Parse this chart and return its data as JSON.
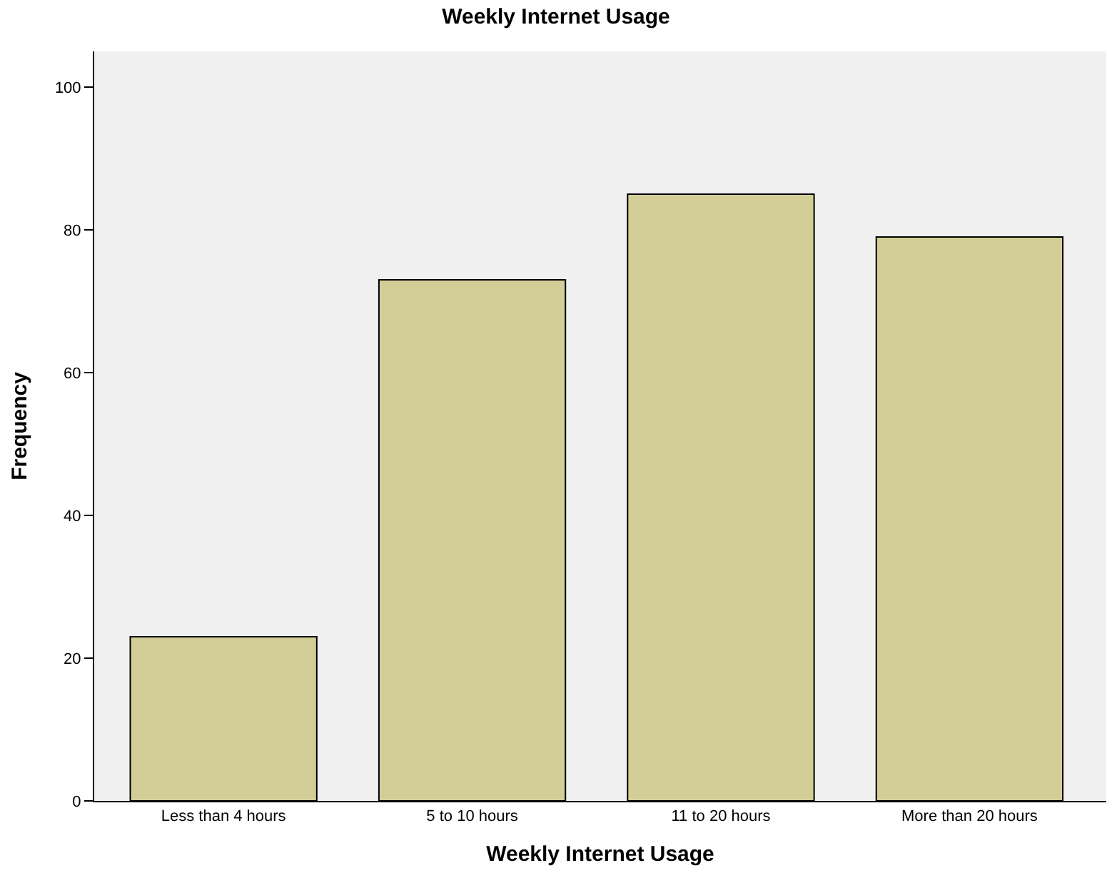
{
  "chart_data": {
    "type": "bar",
    "title": "Weekly Internet Usage",
    "xlabel": "Weekly Internet Usage",
    "ylabel": "Frequency",
    "categories": [
      "Less than 4 hours",
      "5 to 10 hours",
      "11 to 20 hours",
      "More than 20 hours"
    ],
    "values": [
      23,
      73,
      85,
      79
    ],
    "color": "#d3ce97",
    "ylim": [
      0,
      105
    ],
    "yticks": [
      0,
      20,
      40,
      60,
      80,
      100
    ]
  }
}
